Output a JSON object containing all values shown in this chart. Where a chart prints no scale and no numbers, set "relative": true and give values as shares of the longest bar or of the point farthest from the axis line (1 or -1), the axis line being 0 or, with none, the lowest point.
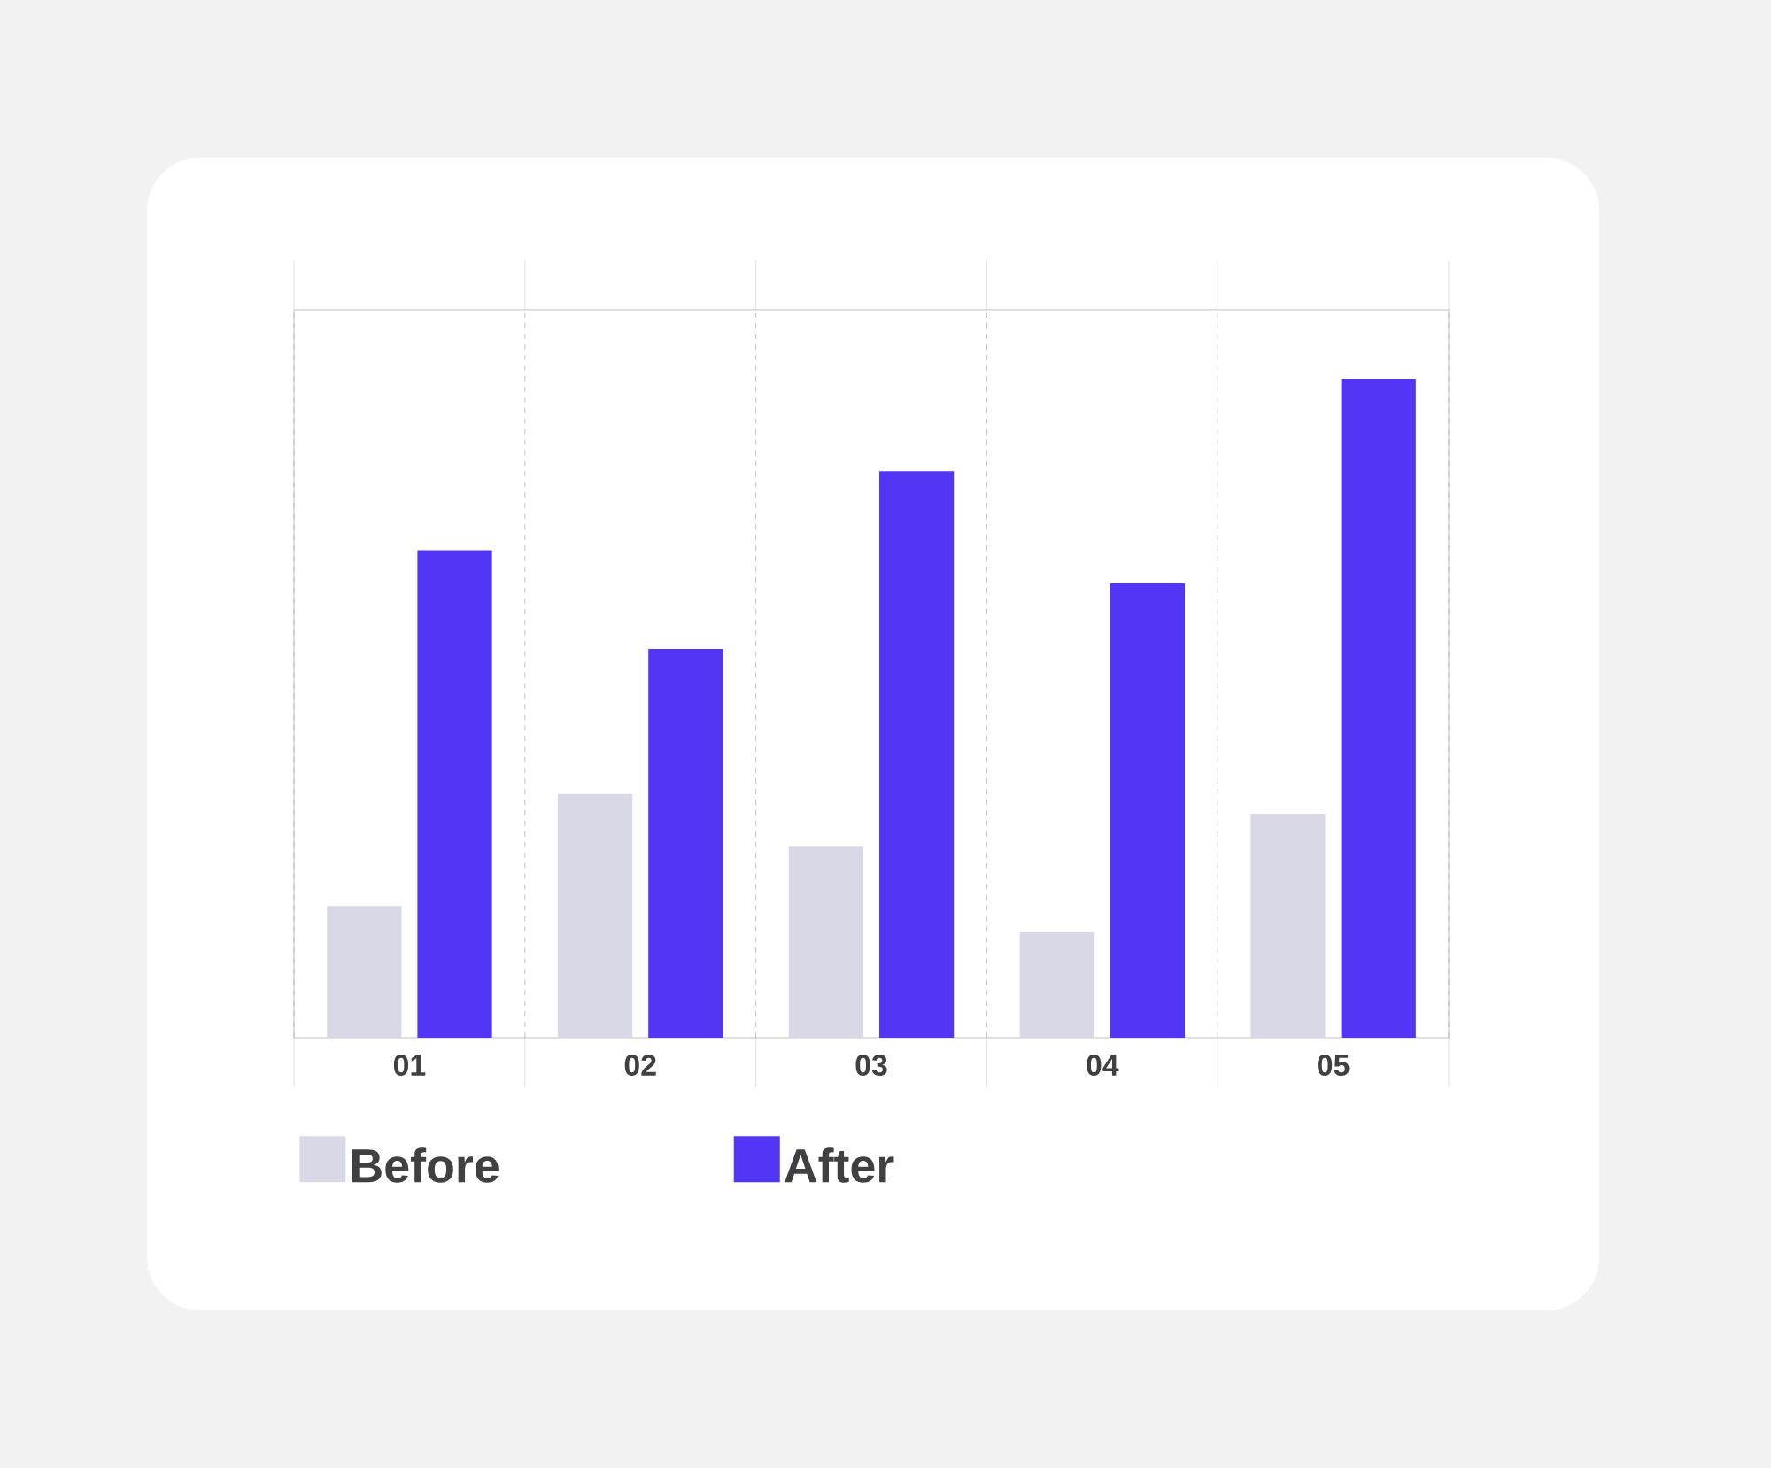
{
  "chart_data": {
    "type": "bar",
    "relative": true,
    "categories": [
      "01",
      "02",
      "03",
      "04",
      "05"
    ],
    "series": [
      {
        "name": "Before",
        "color": "#d9d8e6",
        "values": [
          0.2,
          0.37,
          0.29,
          0.16,
          0.34
        ]
      },
      {
        "name": "After",
        "color": "#5236f5",
        "values": [
          0.74,
          0.59,
          0.86,
          0.69,
          1.0
        ]
      }
    ],
    "grid": "x",
    "legend": "bottom"
  }
}
